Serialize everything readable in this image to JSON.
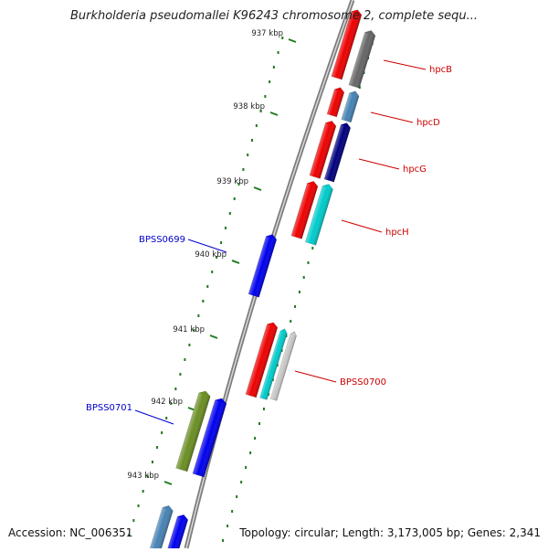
{
  "title": "Burkholderia pseudomallei K96243 chromosome 2, complete sequ...",
  "footer": {
    "accession": "Accession: NC_006351",
    "topology": "Topology: circular; Length: 3,173,005 bp; Genes: 2,341"
  },
  "ticks": [
    {
      "label": "937 kbp",
      "kbp": 937
    },
    {
      "label": "938 kbp",
      "kbp": 938
    },
    {
      "label": "939 kbp",
      "kbp": 939
    },
    {
      "label": "940 kbp",
      "kbp": 940
    },
    {
      "label": "941 kbp",
      "kbp": 941
    },
    {
      "label": "942 kbp",
      "kbp": 942
    },
    {
      "label": "943 kbp",
      "kbp": 943
    }
  ],
  "genes": [
    {
      "name": "hpcB",
      "label_color": "#cc0000",
      "side": "right"
    },
    {
      "name": "hpcD",
      "label_color": "#cc0000",
      "side": "right"
    },
    {
      "name": "hpcG",
      "label_color": "#cc0000",
      "side": "right"
    },
    {
      "name": "hpcH",
      "label_color": "#cc0000",
      "side": "right"
    },
    {
      "name": "BPSS0699",
      "label_color": "#0000cc",
      "side": "left"
    },
    {
      "name": "BPSS0700",
      "label_color": "#cc0000",
      "side": "right"
    },
    {
      "name": "BPSS0701",
      "label_color": "#0000cc",
      "side": "left"
    }
  ],
  "colors": {
    "backbone": "#8a8a8a",
    "tick": "#1f7a1f",
    "feature_red": "#ee0000",
    "feature_gray": "#666666",
    "feature_steelblue": "#4682b4",
    "feature_navy": "#000080",
    "feature_cyan": "#00cccc",
    "feature_blue": "#0000ee",
    "feature_olive": "#6b8e23",
    "feature_lightgray": "#c8c8c8"
  }
}
